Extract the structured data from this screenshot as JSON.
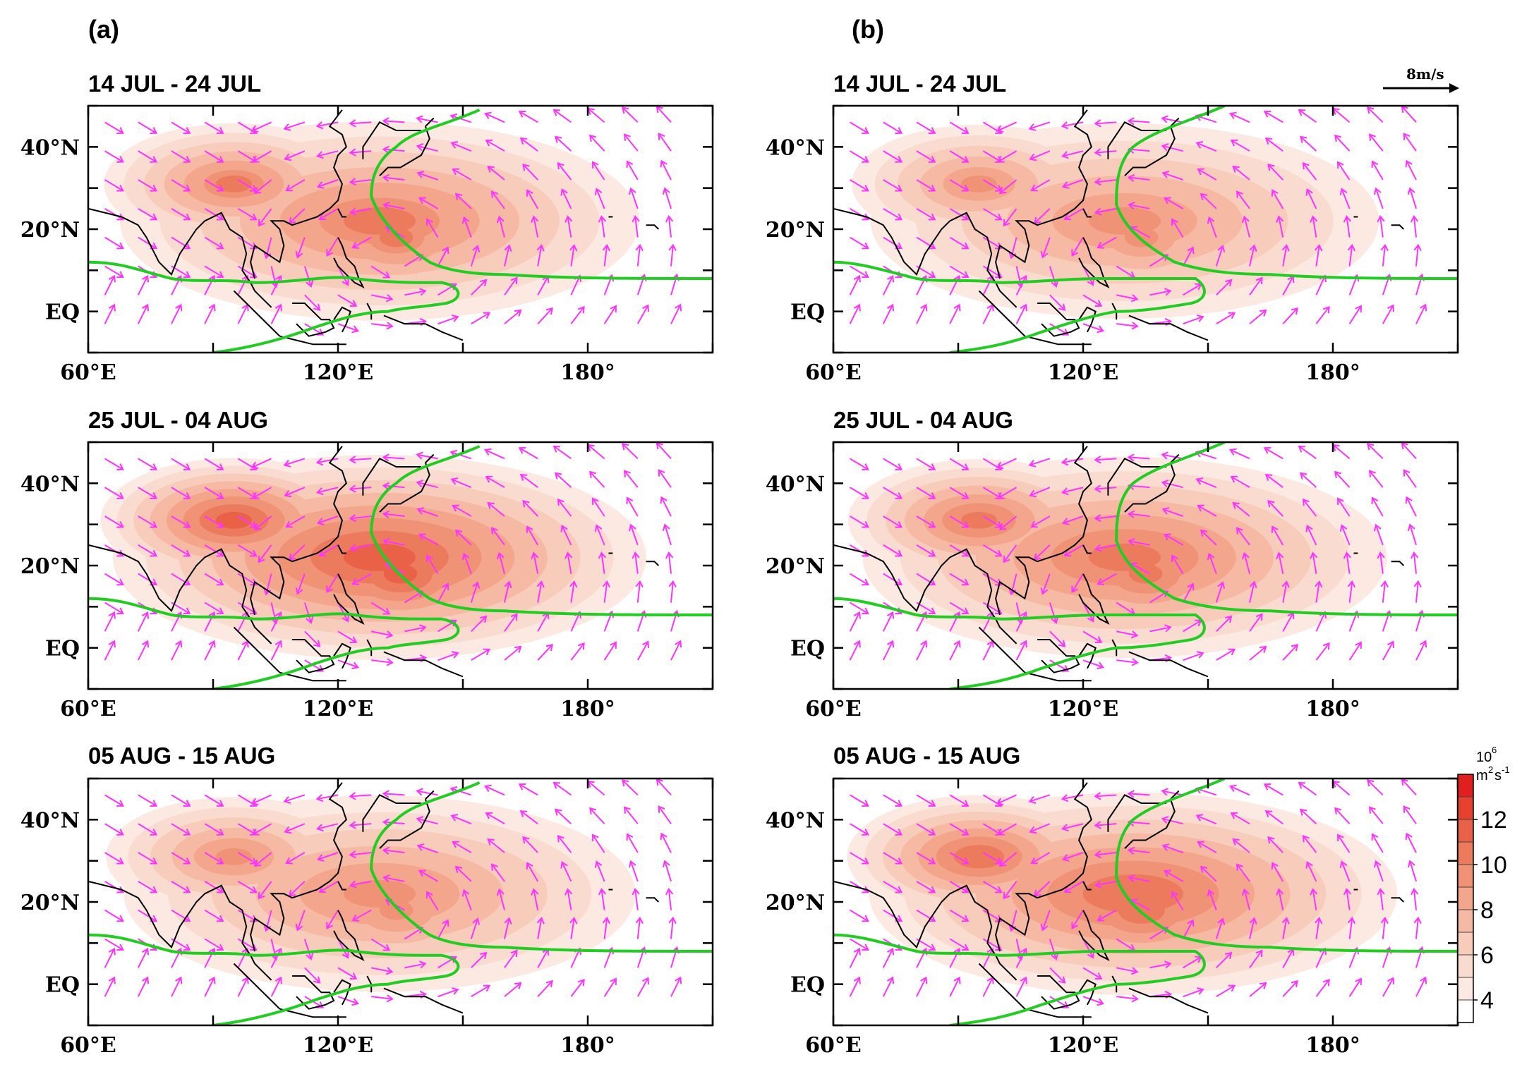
{
  "figure": {
    "column_labels": [
      "(a)",
      "(b)"
    ],
    "panel_titles": [
      "14 JUL - 24 JUL",
      "14 JUL - 24 JUL",
      "25 JUL - 04 AUG",
      "25 JUL - 04 AUG",
      "05 AUG - 15 AUG",
      "05 AUG - 15 AUG"
    ],
    "vector_scale_label": "8m/s",
    "x_ticks": [
      {
        "label": "60°E",
        "lon": 60
      },
      {
        "label": "120°E",
        "lon": 120
      },
      {
        "label": "180°",
        "lon": 180
      }
    ],
    "y_ticks": [
      {
        "label": "40°N",
        "lat": 40
      },
      {
        "label": "20°N",
        "lat": 20
      },
      {
        "label": "EQ",
        "lat": 0
      }
    ],
    "lon_range": [
      60,
      210
    ],
    "lat_range": [
      -10,
      50
    ],
    "colorbar": {
      "unit_line1": "10",
      "unit_exp1": "6",
      "unit_line2": "m",
      "unit_exp2": "2",
      "unit_line2b": "s",
      "unit_exp3": "-1",
      "labels": [
        "12",
        "10",
        "8",
        "6",
        "4"
      ],
      "levels": [
        3,
        4,
        5,
        6,
        7,
        8,
        9,
        10,
        11,
        12,
        13
      ],
      "colors": [
        "#ffffff",
        "#fbe9e2",
        "#f9dccf",
        "#f8ccbb",
        "#f6baa4",
        "#f3a68b",
        "#ef9275",
        "#ec7b5e",
        "#e96147",
        "#e6402e",
        "#e11f1f"
      ]
    },
    "colors": {
      "vector": "#ff33ff",
      "contour": "#22cc22",
      "coast": "#000000"
    }
  }
}
